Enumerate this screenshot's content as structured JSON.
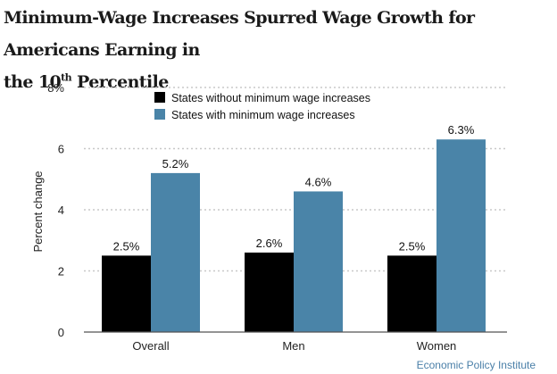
{
  "title": {
    "line1": "Minimum-Wage Increases Spurred Wage Growth for Americans Earning in",
    "prefix": "the 10",
    "superscript": "th",
    "suffix": " Percentile"
  },
  "source": "Economic Policy Institute",
  "chart_data": {
    "type": "bar",
    "categories": [
      "Overall",
      "Men",
      "Women"
    ],
    "series": [
      {
        "name": "States without minimum wage increases",
        "values": [
          2.5,
          2.6,
          2.5
        ],
        "labels": [
          "2.5%",
          "2.6%",
          "2.5%"
        ],
        "color": "#000000"
      },
      {
        "name": "States with minimum wage increases",
        "values": [
          5.2,
          4.6,
          6.3
        ],
        "labels": [
          "5.2%",
          "4.6%",
          "6.3%"
        ],
        "color": "#4a84a8"
      }
    ],
    "ylabel": "Percent change",
    "ylim": [
      0,
      8
    ],
    "yticks": [
      0,
      2,
      4,
      6,
      8
    ],
    "ytick_labels": [
      "0",
      "2",
      "4",
      "6",
      "8%"
    ],
    "grid": true,
    "legend_position": "top-left"
  }
}
